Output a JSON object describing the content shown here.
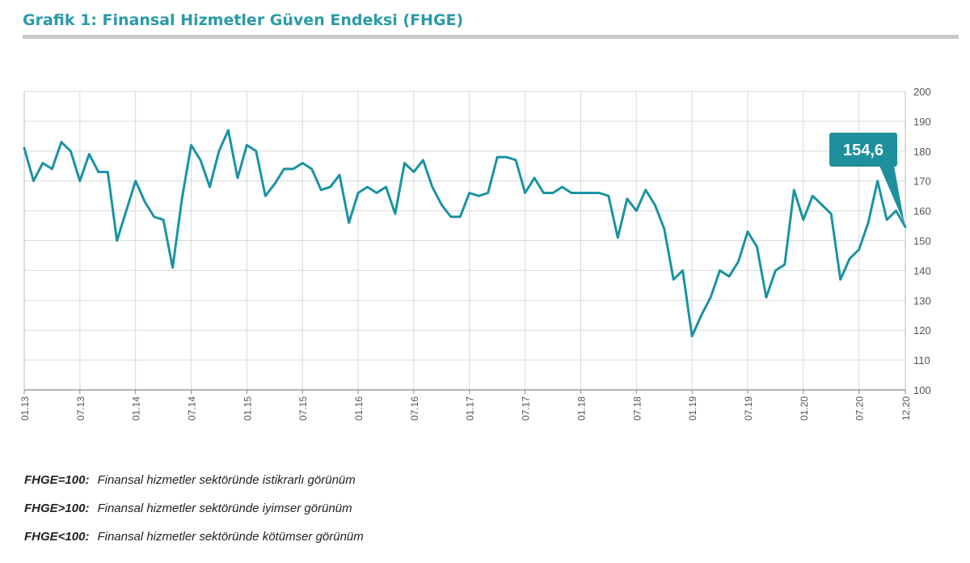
{
  "header": {
    "title": "Grafik 1: Finansal Hizmetler Güven Endeksi (FHGE)"
  },
  "colors": {
    "title": "#2a9aa8",
    "line": "#1a93a3",
    "callout": "#1e8f9c",
    "grid": "#d9d9d9"
  },
  "chart_data": {
    "type": "line",
    "title": "Grafik 1: Finansal Hizmetler Güven Endeksi (FHGE)",
    "xlabel": "",
    "ylabel": "",
    "ylim": [
      100,
      200
    ],
    "y_ticks": [
      100,
      110,
      120,
      130,
      140,
      150,
      160,
      170,
      180,
      190,
      200
    ],
    "y_axis_side": "right",
    "grid": true,
    "x_tick_labels": [
      "01.13",
      "07.13",
      "01.14",
      "07.14",
      "01.15",
      "07.15",
      "01.16",
      "07.16",
      "01.17",
      "07.17",
      "01.18",
      "07.18",
      "01.19",
      "07.19",
      "01.20",
      "07.20",
      "12.20"
    ],
    "x_tick_months": [
      0,
      6,
      12,
      18,
      24,
      30,
      36,
      42,
      48,
      54,
      60,
      66,
      72,
      78,
      84,
      90,
      95
    ],
    "series": [
      {
        "values": [
          181,
          170,
          176,
          174,
          183,
          180,
          170,
          179,
          173,
          173,
          150,
          160,
          170,
          163,
          158,
          157,
          141,
          164,
          182,
          177,
          168,
          180,
          187,
          171,
          182,
          180,
          165,
          169,
          174,
          174,
          176,
          174,
          167,
          168,
          172,
          156,
          166,
          168,
          166,
          168,
          159,
          176,
          173,
          177,
          168,
          162,
          158,
          158,
          166,
          165,
          166,
          178,
          178,
          177,
          166,
          171,
          166,
          166,
          168,
          166,
          166,
          166,
          166,
          165,
          151,
          164,
          160,
          167,
          162,
          154,
          137,
          140,
          118,
          125,
          131,
          140,
          138,
          143,
          153,
          148,
          131,
          140,
          142,
          167,
          157,
          165,
          162,
          159,
          137,
          144,
          147,
          156,
          170,
          157,
          160,
          154.6
        ]
      }
    ],
    "annotations": [
      {
        "text": "154,6",
        "point_index": 95,
        "value": 154.6
      }
    ]
  },
  "notes": [
    {
      "key": "FHGE=100:",
      "desc": "Finansal hizmetler sektöründe istikrarlı görünüm"
    },
    {
      "key": "FHGE>100:",
      "desc": "Finansal hizmetler sektöründe iyimser görünüm"
    },
    {
      "key": "FHGE<100:",
      "desc": "Finansal hizmetler sektöründe kötümser görünüm"
    }
  ]
}
